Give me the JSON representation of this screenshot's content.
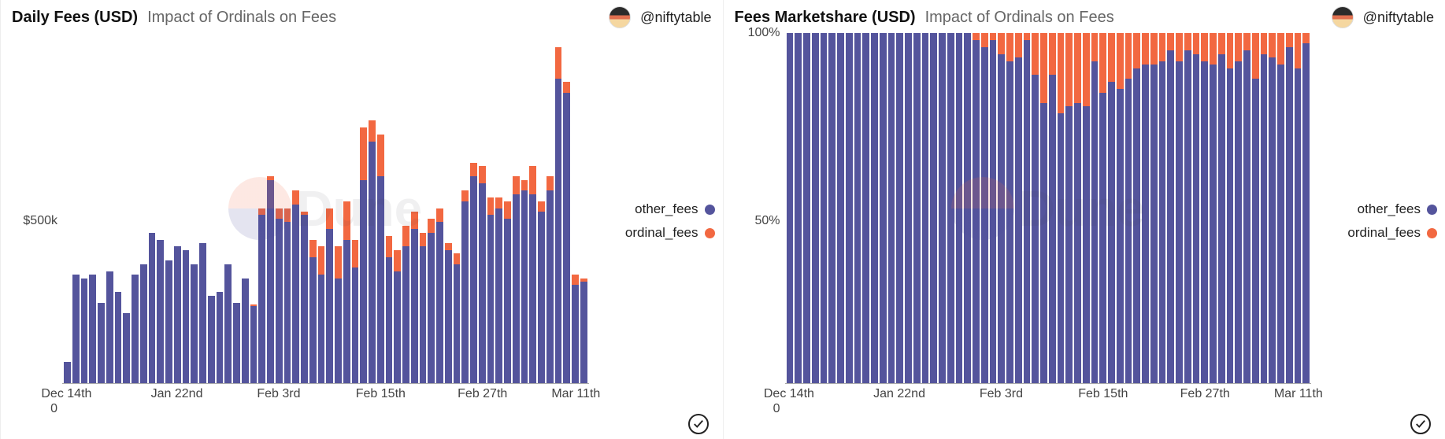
{
  "colors": {
    "other": "#54549c",
    "ordinal": "#f26841",
    "axis_text": "#444444",
    "title": "#111111",
    "subtitle": "#666666"
  },
  "author": {
    "handle": "@niftytable"
  },
  "legend": {
    "other_label": "other_fees",
    "ordinal_label": "ordinal_fees"
  },
  "watermark_text": "Dune",
  "left": {
    "title": "Daily Fees (USD)",
    "subtitle": "Impact of Ordinals on Fees",
    "type": "stacked-bar",
    "ymax": 1000000,
    "yticks": [
      {
        "value": 0,
        "label": "0"
      },
      {
        "value": 500000,
        "label": "$500k"
      }
    ],
    "xticks": [
      {
        "index": 0,
        "label": "Dec 14th"
      },
      {
        "index": 13,
        "label": "Jan 22nd"
      },
      {
        "index": 25,
        "label": "Feb 3rd"
      },
      {
        "index": 37,
        "label": "Feb 15th"
      },
      {
        "index": 49,
        "label": "Feb 27th"
      },
      {
        "index": 60,
        "label": "Mar 11th"
      }
    ],
    "data": [
      {
        "other": 60000,
        "ordinal": 0
      },
      {
        "other": 310000,
        "ordinal": 0
      },
      {
        "other": 300000,
        "ordinal": 0
      },
      {
        "other": 310000,
        "ordinal": 0
      },
      {
        "other": 230000,
        "ordinal": 0
      },
      {
        "other": 320000,
        "ordinal": 0
      },
      {
        "other": 260000,
        "ordinal": 0
      },
      {
        "other": 200000,
        "ordinal": 0
      },
      {
        "other": 310000,
        "ordinal": 0
      },
      {
        "other": 340000,
        "ordinal": 0
      },
      {
        "other": 430000,
        "ordinal": 0
      },
      {
        "other": 410000,
        "ordinal": 0
      },
      {
        "other": 350000,
        "ordinal": 0
      },
      {
        "other": 390000,
        "ordinal": 0
      },
      {
        "other": 380000,
        "ordinal": 0
      },
      {
        "other": 340000,
        "ordinal": 0
      },
      {
        "other": 400000,
        "ordinal": 0
      },
      {
        "other": 250000,
        "ordinal": 0
      },
      {
        "other": 260000,
        "ordinal": 0
      },
      {
        "other": 340000,
        "ordinal": 0
      },
      {
        "other": 230000,
        "ordinal": 0
      },
      {
        "other": 300000,
        "ordinal": 0
      },
      {
        "other": 220000,
        "ordinal": 5000
      },
      {
        "other": 480000,
        "ordinal": 20000
      },
      {
        "other": 580000,
        "ordinal": 10000
      },
      {
        "other": 470000,
        "ordinal": 30000
      },
      {
        "other": 460000,
        "ordinal": 40000
      },
      {
        "other": 510000,
        "ordinal": 40000
      },
      {
        "other": 480000,
        "ordinal": 10000
      },
      {
        "other": 360000,
        "ordinal": 50000
      },
      {
        "other": 310000,
        "ordinal": 80000
      },
      {
        "other": 440000,
        "ordinal": 60000
      },
      {
        "other": 300000,
        "ordinal": 90000
      },
      {
        "other": 410000,
        "ordinal": 110000
      },
      {
        "other": 330000,
        "ordinal": 80000
      },
      {
        "other": 580000,
        "ordinal": 150000
      },
      {
        "other": 690000,
        "ordinal": 60000
      },
      {
        "other": 590000,
        "ordinal": 120000
      },
      {
        "other": 360000,
        "ordinal": 60000
      },
      {
        "other": 320000,
        "ordinal": 60000
      },
      {
        "other": 390000,
        "ordinal": 60000
      },
      {
        "other": 440000,
        "ordinal": 50000
      },
      {
        "other": 390000,
        "ordinal": 40000
      },
      {
        "other": 430000,
        "ordinal": 40000
      },
      {
        "other": 460000,
        "ordinal": 40000
      },
      {
        "other": 380000,
        "ordinal": 20000
      },
      {
        "other": 340000,
        "ordinal": 30000
      },
      {
        "other": 520000,
        "ordinal": 30000
      },
      {
        "other": 590000,
        "ordinal": 40000
      },
      {
        "other": 570000,
        "ordinal": 50000
      },
      {
        "other": 480000,
        "ordinal": 50000
      },
      {
        "other": 500000,
        "ordinal": 30000
      },
      {
        "other": 470000,
        "ordinal": 50000
      },
      {
        "other": 540000,
        "ordinal": 50000
      },
      {
        "other": 550000,
        "ordinal": 30000
      },
      {
        "other": 540000,
        "ordinal": 80000
      },
      {
        "other": 490000,
        "ordinal": 30000
      },
      {
        "other": 550000,
        "ordinal": 40000
      },
      {
        "other": 870000,
        "ordinal": 90000
      },
      {
        "other": 830000,
        "ordinal": 30000
      },
      {
        "other": 280000,
        "ordinal": 30000
      },
      {
        "other": 290000,
        "ordinal": 10000
      }
    ]
  },
  "right": {
    "title": "Fees Marketshare (USD)",
    "subtitle": "Impact of Ordinals on Fees",
    "type": "stacked-bar-100",
    "ymax": 100,
    "yticks": [
      {
        "value": 0,
        "label": "0"
      },
      {
        "value": 50,
        "label": "50%"
      },
      {
        "value": 100,
        "label": "100%"
      }
    ],
    "xticks": [
      {
        "index": 0,
        "label": "Dec 14th"
      },
      {
        "index": 13,
        "label": "Jan 22nd"
      },
      {
        "index": 25,
        "label": "Feb 3rd"
      },
      {
        "index": 37,
        "label": "Feb 15th"
      },
      {
        "index": 49,
        "label": "Feb 27th"
      },
      {
        "index": 60,
        "label": "Mar 11th"
      }
    ],
    "data": [
      {
        "other": 100,
        "ordinal": 0
      },
      {
        "other": 100,
        "ordinal": 0
      },
      {
        "other": 100,
        "ordinal": 0
      },
      {
        "other": 100,
        "ordinal": 0
      },
      {
        "other": 100,
        "ordinal": 0
      },
      {
        "other": 100,
        "ordinal": 0
      },
      {
        "other": 100,
        "ordinal": 0
      },
      {
        "other": 100,
        "ordinal": 0
      },
      {
        "other": 100,
        "ordinal": 0
      },
      {
        "other": 100,
        "ordinal": 0
      },
      {
        "other": 100,
        "ordinal": 0
      },
      {
        "other": 100,
        "ordinal": 0
      },
      {
        "other": 100,
        "ordinal": 0
      },
      {
        "other": 100,
        "ordinal": 0
      },
      {
        "other": 100,
        "ordinal": 0
      },
      {
        "other": 100,
        "ordinal": 0
      },
      {
        "other": 100,
        "ordinal": 0
      },
      {
        "other": 100,
        "ordinal": 0
      },
      {
        "other": 100,
        "ordinal": 0
      },
      {
        "other": 100,
        "ordinal": 0
      },
      {
        "other": 100,
        "ordinal": 0
      },
      {
        "other": 100,
        "ordinal": 0
      },
      {
        "other": 98,
        "ordinal": 2
      },
      {
        "other": 96,
        "ordinal": 4
      },
      {
        "other": 98,
        "ordinal": 2
      },
      {
        "other": 94,
        "ordinal": 6
      },
      {
        "other": 92,
        "ordinal": 8
      },
      {
        "other": 93,
        "ordinal": 7
      },
      {
        "other": 98,
        "ordinal": 2
      },
      {
        "other": 88,
        "ordinal": 12
      },
      {
        "other": 80,
        "ordinal": 20
      },
      {
        "other": 88,
        "ordinal": 12
      },
      {
        "other": 77,
        "ordinal": 23
      },
      {
        "other": 79,
        "ordinal": 21
      },
      {
        "other": 80,
        "ordinal": 20
      },
      {
        "other": 79,
        "ordinal": 21
      },
      {
        "other": 92,
        "ordinal": 8
      },
      {
        "other": 83,
        "ordinal": 17
      },
      {
        "other": 86,
        "ordinal": 14
      },
      {
        "other": 84,
        "ordinal": 16
      },
      {
        "other": 87,
        "ordinal": 13
      },
      {
        "other": 90,
        "ordinal": 10
      },
      {
        "other": 91,
        "ordinal": 9
      },
      {
        "other": 91,
        "ordinal": 9
      },
      {
        "other": 92,
        "ordinal": 8
      },
      {
        "other": 95,
        "ordinal": 5
      },
      {
        "other": 92,
        "ordinal": 8
      },
      {
        "other": 95,
        "ordinal": 5
      },
      {
        "other": 94,
        "ordinal": 6
      },
      {
        "other": 92,
        "ordinal": 8
      },
      {
        "other": 91,
        "ordinal": 9
      },
      {
        "other": 94,
        "ordinal": 6
      },
      {
        "other": 90,
        "ordinal": 10
      },
      {
        "other": 92,
        "ordinal": 8
      },
      {
        "other": 95,
        "ordinal": 5
      },
      {
        "other": 87,
        "ordinal": 13
      },
      {
        "other": 94,
        "ordinal": 6
      },
      {
        "other": 93,
        "ordinal": 7
      },
      {
        "other": 91,
        "ordinal": 9
      },
      {
        "other": 96,
        "ordinal": 4
      },
      {
        "other": 90,
        "ordinal": 10
      },
      {
        "other": 97,
        "ordinal": 3
      }
    ]
  }
}
